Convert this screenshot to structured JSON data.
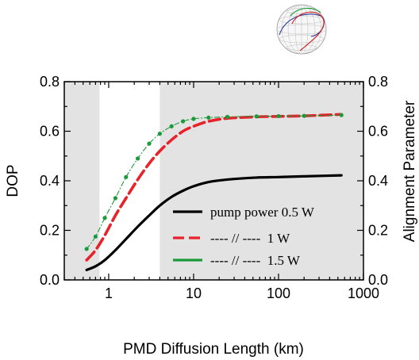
{
  "chart_data": {
    "type": "line",
    "title": "",
    "xlabel": "PMD Diffusion Length (km)",
    "ylabel": "DOP",
    "ylabel_right": "Alignment Parameter",
    "x_scale": "log",
    "xlim": [
      0.3,
      1000
    ],
    "ylim": [
      0.0,
      0.8
    ],
    "x_ticks": [
      {
        "value": 1,
        "label": "1"
      },
      {
        "value": 10,
        "label": "10"
      },
      {
        "value": 100,
        "label": "100"
      },
      {
        "value": 1000,
        "label": "1000"
      }
    ],
    "y_ticks": [
      {
        "value": 0.0,
        "label": "0.0"
      },
      {
        "value": 0.2,
        "label": "0.2"
      },
      {
        "value": 0.4,
        "label": "0.4"
      },
      {
        "value": 0.6,
        "label": "0.6"
      },
      {
        "value": 0.8,
        "label": "0.8"
      }
    ],
    "shaded_x_ranges": [
      [
        0.3,
        0.78
      ],
      [
        4.0,
        1000
      ]
    ],
    "shade_color": "#e3e3e3",
    "legend_position": "bottom-right",
    "grid": false,
    "series": [
      {
        "name": "pump power 0.5 W",
        "color": "#000000",
        "style": "solid",
        "x": [
          0.55,
          0.7,
          0.9,
          1.2,
          1.6,
          2.2,
          3,
          4,
          5.5,
          7.5,
          10,
          15,
          25,
          55,
          100,
          200,
          550
        ],
        "y": [
          0.04,
          0.055,
          0.08,
          0.12,
          0.165,
          0.215,
          0.26,
          0.3,
          0.335,
          0.36,
          0.378,
          0.395,
          0.405,
          0.413,
          0.415,
          0.418,
          0.422
        ]
      },
      {
        "name": "---- // ----  1 W",
        "color": "#e8222a",
        "style": "dash",
        "x": [
          0.55,
          0.7,
          0.9,
          1.2,
          1.6,
          2.2,
          3,
          4,
          5.5,
          7.5,
          10,
          15,
          25,
          55,
          100,
          200,
          550
        ],
        "y": [
          0.08,
          0.12,
          0.18,
          0.26,
          0.33,
          0.405,
          0.47,
          0.52,
          0.565,
          0.6,
          0.62,
          0.64,
          0.652,
          0.658,
          0.66,
          0.662,
          0.668
        ]
      },
      {
        "name": "---- // ----  1.5 W",
        "color": "#1a9a3a",
        "style": "dot-dash",
        "x": [
          0.55,
          0.7,
          0.9,
          1.2,
          1.6,
          2.2,
          3,
          4,
          5.5,
          7.5,
          10,
          15,
          25,
          55,
          100,
          200,
          550
        ],
        "y": [
          0.125,
          0.175,
          0.25,
          0.33,
          0.415,
          0.49,
          0.55,
          0.59,
          0.62,
          0.64,
          0.65,
          0.655,
          0.658,
          0.66,
          0.661,
          0.662,
          0.665
        ]
      }
    ]
  },
  "inset": {
    "icon": "poincare-sphere-icon",
    "curve_colors": [
      "#2a3a9a",
      "#d02020",
      "#1a9a3a"
    ]
  }
}
